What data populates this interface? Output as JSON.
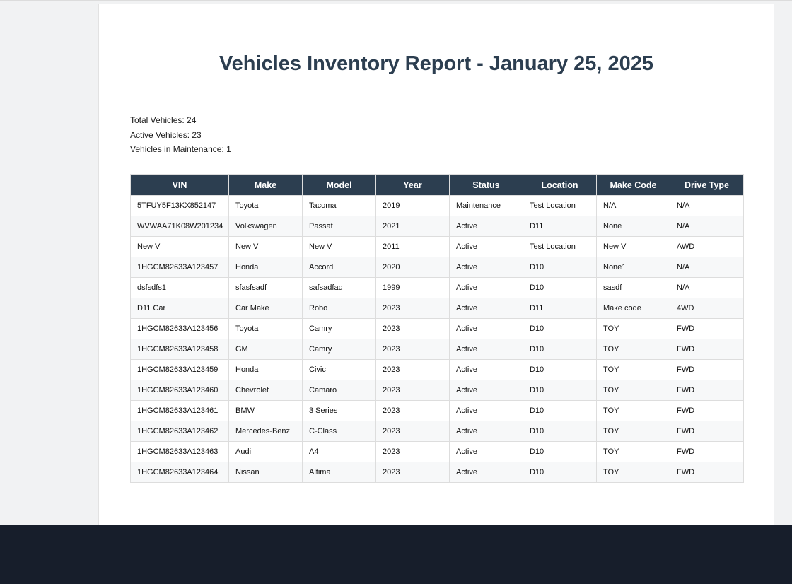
{
  "report": {
    "title": "Vehicles Inventory Report - January 25, 2025",
    "summary": {
      "total": "Total Vehicles: 24",
      "active": "Active Vehicles: 23",
      "maintenance": "Vehicles in Maintenance: 1"
    }
  },
  "table": {
    "columns": [
      "VIN",
      "Make",
      "Model",
      "Year",
      "Status",
      "Location",
      "Make Code",
      "Drive Type"
    ],
    "rows": [
      [
        "5TFUY5F13KX852147",
        "Toyota",
        "Tacoma",
        "2019",
        "Maintenance",
        "Test Location",
        "N/A",
        "N/A"
      ],
      [
        "WVWAA71K08W201234",
        "Volkswagen",
        "Passat",
        "2021",
        "Active",
        "D11",
        "None",
        "N/A"
      ],
      [
        "New V",
        "New V",
        "New V",
        "2011",
        "Active",
        "Test Location",
        "New V",
        "AWD"
      ],
      [
        "1HGCM82633A123457",
        "Honda",
        "Accord",
        "2020",
        "Active",
        "D10",
        "None1",
        "N/A"
      ],
      [
        "dsfsdfs1",
        "sfasfsadf",
        "safsadfad",
        "1999",
        "Active",
        "D10",
        "sasdf",
        "N/A"
      ],
      [
        "D11 Car",
        "Car Make",
        "Robo",
        "2023",
        "Active",
        "D11",
        "Make code",
        "4WD"
      ],
      [
        "1HGCM82633A123456",
        "Toyota",
        "Camry",
        "2023",
        "Active",
        "D10",
        "TOY",
        "FWD"
      ],
      [
        "1HGCM82633A123458",
        "GM",
        "Camry",
        "2023",
        "Active",
        "D10",
        "TOY",
        "FWD"
      ],
      [
        "1HGCM82633A123459",
        "Honda",
        "Civic",
        "2023",
        "Active",
        "D10",
        "TOY",
        "FWD"
      ],
      [
        "1HGCM82633A123460",
        "Chevrolet",
        "Camaro",
        "2023",
        "Active",
        "D10",
        "TOY",
        "FWD"
      ],
      [
        "1HGCM82633A123461",
        "BMW",
        "3 Series",
        "2023",
        "Active",
        "D10",
        "TOY",
        "FWD"
      ],
      [
        "1HGCM82633A123462",
        "Mercedes-Benz",
        "C-Class",
        "2023",
        "Active",
        "D10",
        "TOY",
        "FWD"
      ],
      [
        "1HGCM82633A123463",
        "Audi",
        "A4",
        "2023",
        "Active",
        "D10",
        "TOY",
        "FWD"
      ],
      [
        "1HGCM82633A123464",
        "Nissan",
        "Altima",
        "2023",
        "Active",
        "D10",
        "TOY",
        "FWD"
      ]
    ]
  },
  "colors": {
    "header_bg": "#2c3e50",
    "title": "#2c3e50",
    "footer_bar": "#171e2b"
  }
}
